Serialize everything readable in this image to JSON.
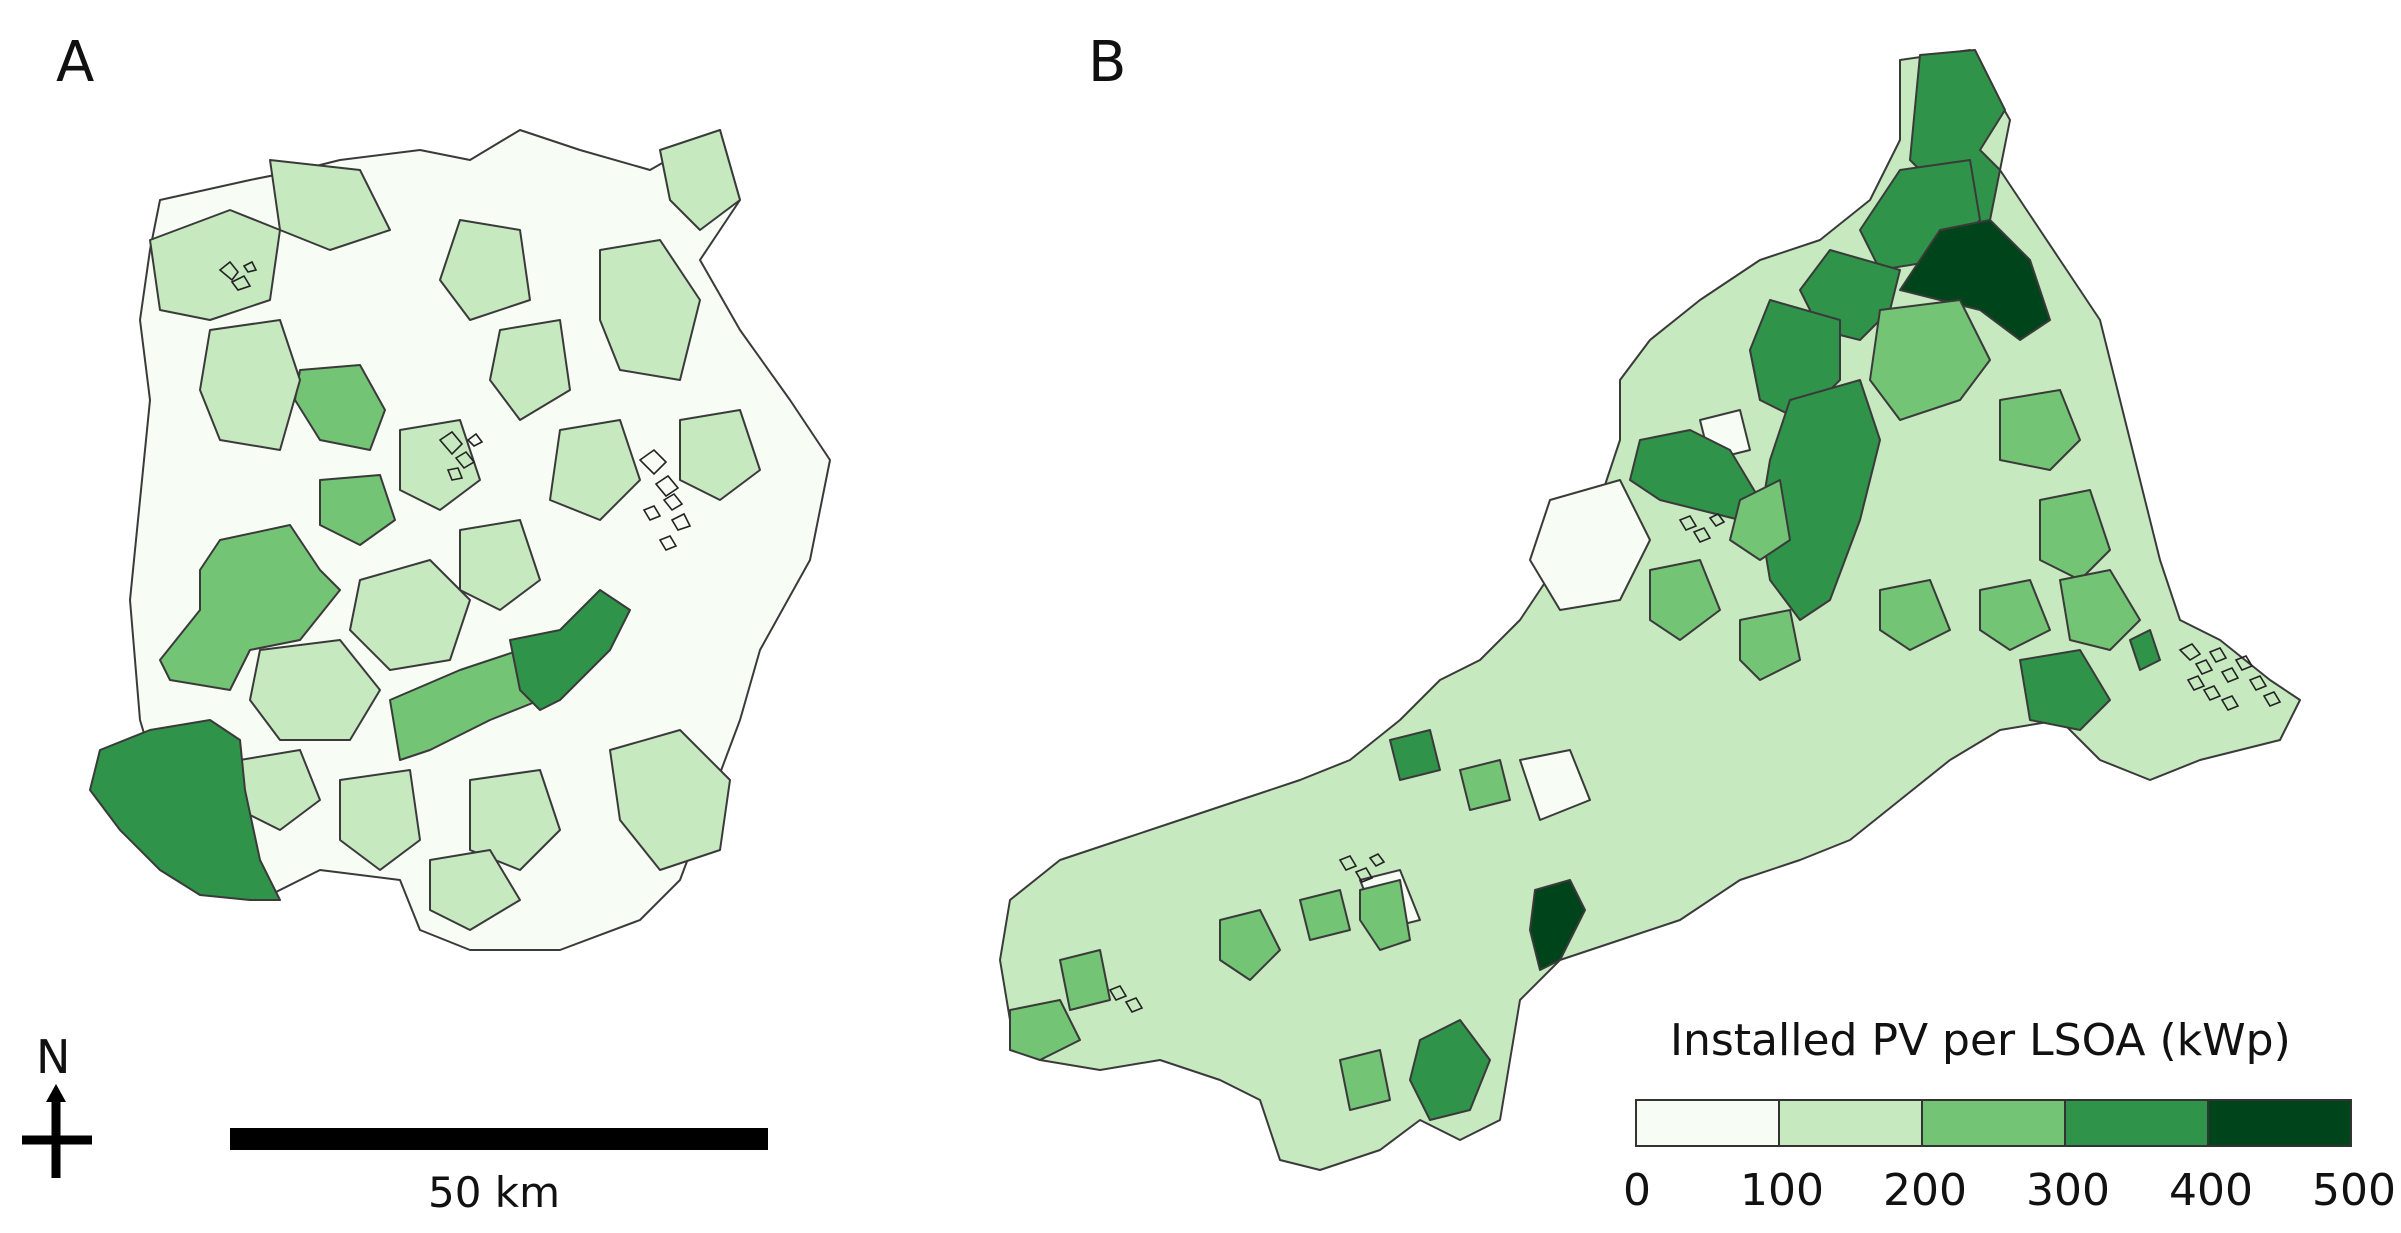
{
  "panels": [
    {
      "label": "A"
    },
    {
      "label": "B"
    }
  ],
  "legend": {
    "title": "Installed PV per LSOA (kWp)",
    "ticks": [
      "0",
      "100",
      "200",
      "300",
      "400",
      "500"
    ],
    "classes": [
      {
        "range": "0-100",
        "color": "#f7fcf5"
      },
      {
        "range": "100-200",
        "color": "#c7e9c0"
      },
      {
        "range": "200-300",
        "color": "#74c476"
      },
      {
        "range": "300-400",
        "color": "#2f9449"
      },
      {
        "range": "400-500",
        "color": "#00441b"
      }
    ]
  },
  "scale_bar": {
    "label": "50 km"
  },
  "north_arrow": {
    "label": "N",
    "icon": "north-arrow-icon"
  }
}
